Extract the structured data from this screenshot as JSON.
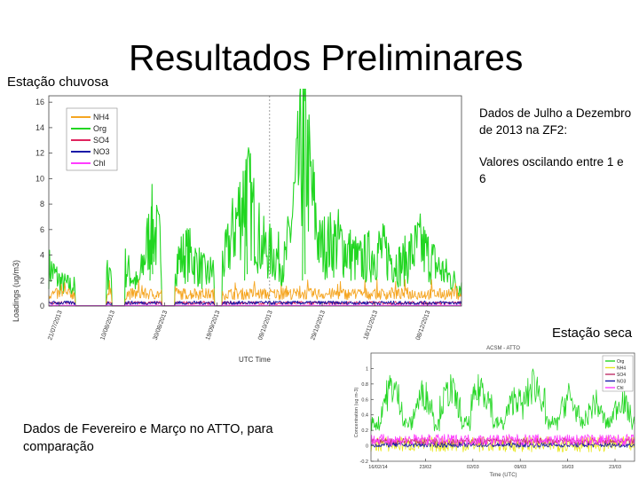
{
  "slide": {
    "title": "Resultados Preliminares",
    "wet_label": "Estação chuvosa",
    "dry_label": "Estação seca",
    "note_top_1": "Dados de Julho a Dezembro de 2013 na ZF2:",
    "note_top_2": "Valores oscilando entre 1 e 6",
    "note_bottom": "Dados de Fevereiro e Março no ATTO, para comparação"
  },
  "chart_data": [
    {
      "type": "line",
      "title": "",
      "xlabel": "UTC Time",
      "ylabel": "Loadings (ug/m3)",
      "ylim": [
        0,
        16.5
      ],
      "yticks": [
        0,
        2,
        4,
        6,
        8,
        10,
        12,
        14,
        16
      ],
      "xticks": [
        "21/07/2013",
        "10/08/2013",
        "30/08/2013",
        "19/09/2013",
        "09/10/2013",
        "29/10/2013",
        "18/11/2013",
        "08/12/2013"
      ],
      "x_range": [
        "2013-07-17",
        "2013-12-21"
      ],
      "legend_position": "top-left",
      "grid": false,
      "annotations": "vertical dashed line near 09/10/2013",
      "series": [
        {
          "name": "NH4",
          "color": "#f5a623",
          "values_summary": "0.3–1.5 mostly, spikes to 2"
        },
        {
          "name": "Org",
          "color": "#22d622",
          "values_summary": "1–6 mostly, peaks 11.5 (30/09) and 16.3 (22/10)",
          "points": [
            [
              "2013-07-17",
              3.8
            ],
            [
              "2013-07-22",
              2.2
            ],
            [
              "2013-07-28",
              1.8
            ],
            [
              "2013-08-05",
              1.5
            ],
            [
              "2013-08-12",
              5.0
            ],
            [
              "2013-08-20",
              2.0
            ],
            [
              "2013-08-25",
              7.8
            ],
            [
              "2013-09-01",
              4.0
            ],
            [
              "2013-09-08",
              5.2
            ],
            [
              "2013-09-15",
              3.0
            ],
            [
              "2013-09-22",
              4.5
            ],
            [
              "2013-09-30",
              11.5
            ],
            [
              "2013-10-06",
              5.8
            ],
            [
              "2013-10-15",
              4.2
            ],
            [
              "2013-10-22",
              16.3
            ],
            [
              "2013-10-28",
              5.8
            ],
            [
              "2013-11-04",
              6.3
            ],
            [
              "2013-11-12",
              4.3
            ],
            [
              "2013-11-20",
              5.5
            ],
            [
              "2013-11-28",
              4.0
            ],
            [
              "2013-12-05",
              6.0
            ],
            [
              "2013-12-12",
              3.8
            ],
            [
              "2013-12-20",
              2.0
            ]
          ]
        },
        {
          "name": "SO4",
          "color": "#e0245e",
          "values_summary": "0.1–0.4"
        },
        {
          "name": "NO3",
          "color": "#1a1aa8",
          "values_summary": "0.1–0.5"
        },
        {
          "name": "Chl",
          "color": "#ff3cff",
          "values_summary": "~0.05"
        }
      ]
    },
    {
      "type": "line",
      "title": "ACSM - ATTO",
      "xlabel": "Time (UTC)",
      "ylabel": "Concentration (ug m-3)",
      "ylim": [
        -0.2,
        1.2
      ],
      "yticks": [
        -0.2,
        0,
        0.2,
        0.4,
        0.6,
        0.8,
        1
      ],
      "xticks": [
        "16/02/14",
        "23/02",
        "02/03",
        "09/03",
        "16/03",
        "23/03"
      ],
      "legend_position": "top-right",
      "grid": false,
      "series": [
        {
          "name": "Org",
          "color": "#22d622",
          "values_summary": "0.2–0.9, peaks ~1.0"
        },
        {
          "name": "NH4",
          "color": "#e8e820",
          "values_summary": "-0.1–0.1"
        },
        {
          "name": "SO4",
          "color": "#c0306a",
          "values_summary": "~0.05"
        },
        {
          "name": "NO3",
          "color": "#1a1aa8",
          "values_summary": "~0.0"
        },
        {
          "name": "Chl",
          "color": "#ff3cff",
          "values_summary": "0–0.15"
        }
      ]
    }
  ]
}
